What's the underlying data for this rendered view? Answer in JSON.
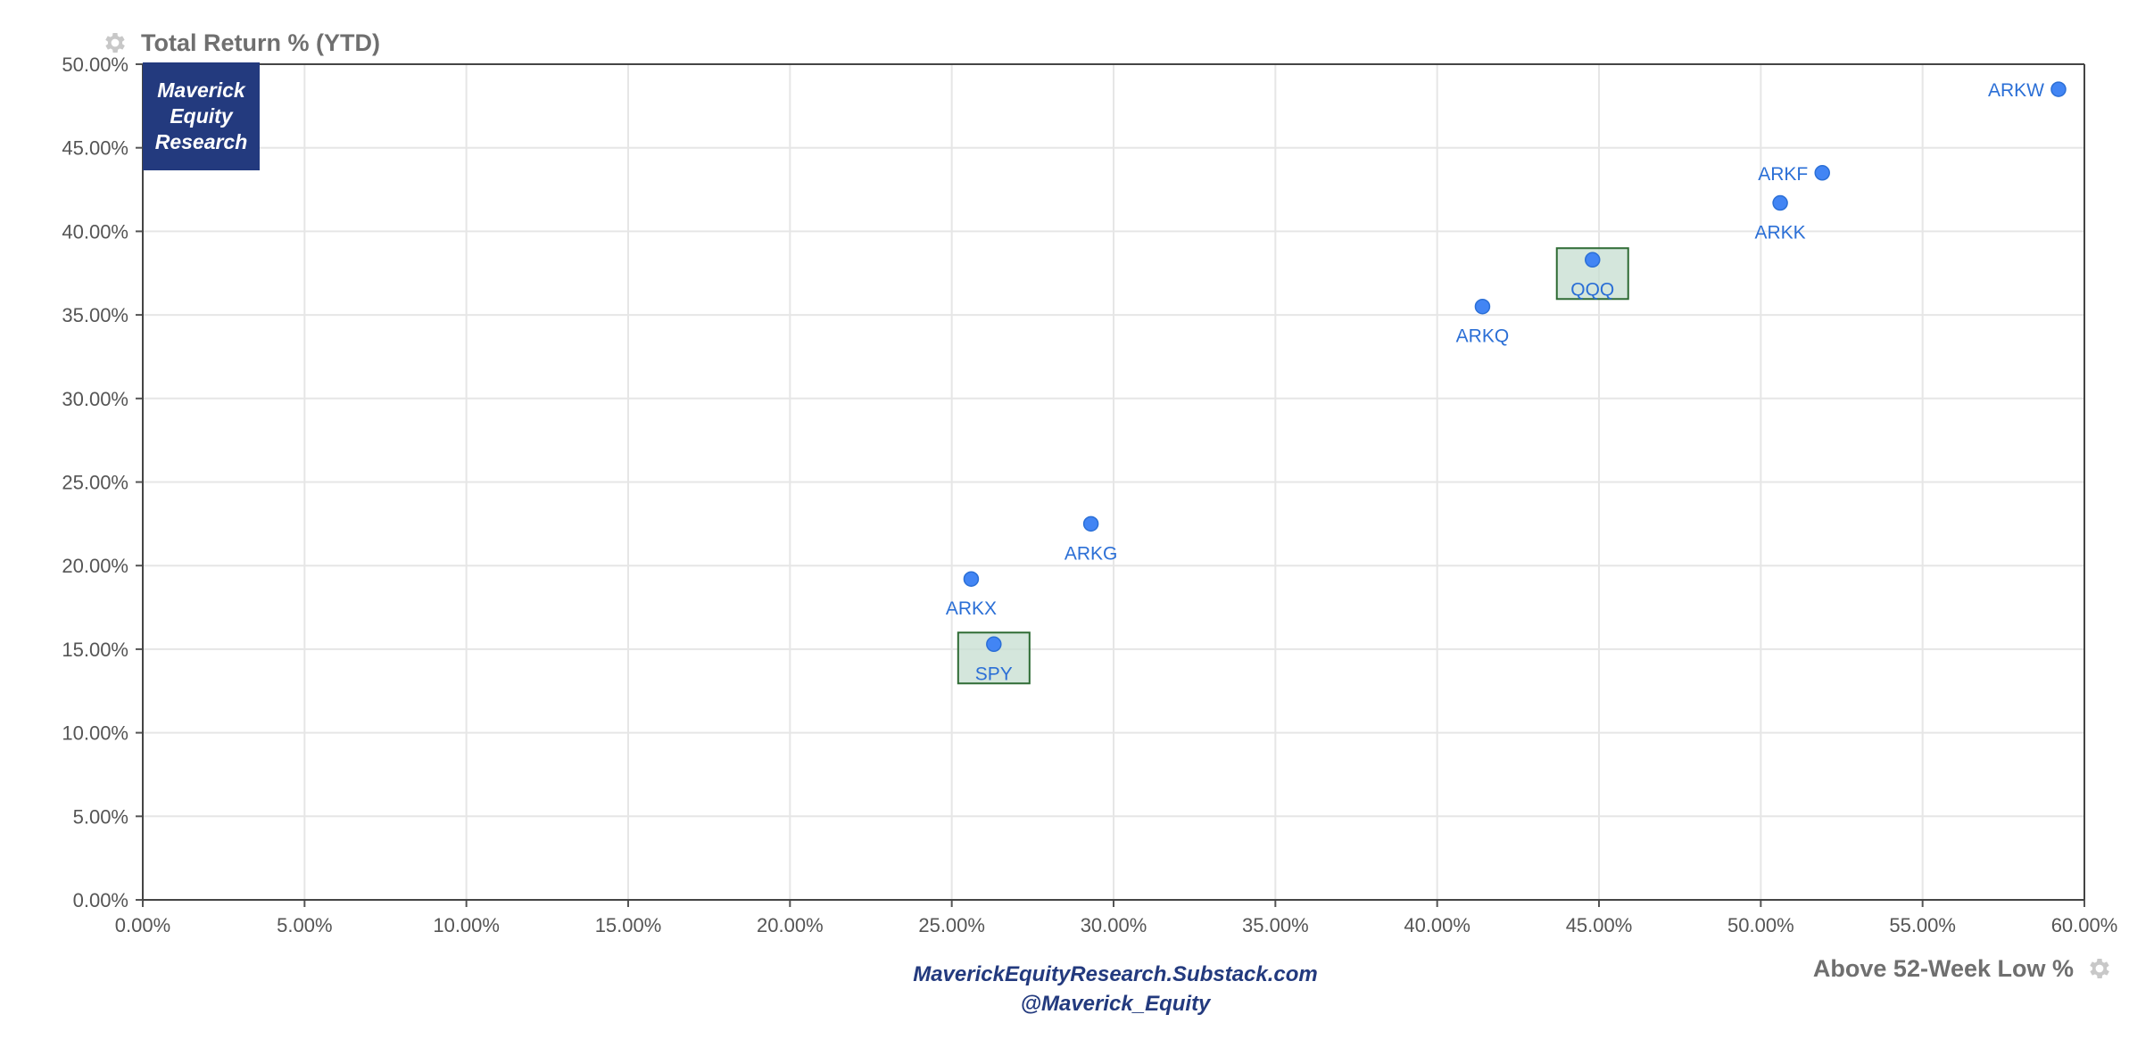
{
  "header": {
    "y_axis_title": "Total Return % (YTD)",
    "settings_icon": "gear-icon"
  },
  "footer": {
    "x_axis_title": "Above 52-Week Low %",
    "settings_icon": "gear-icon",
    "source_line_1": "MaverickEquityResearch.Substack.com",
    "source_line_2": "@Maverick_Equity"
  },
  "brand": {
    "line_1": "Maverick",
    "line_2": "Equity",
    "line_3": "Research"
  },
  "colors": {
    "point": "#4285f4",
    "point_label": "#2b6fd6",
    "highlight_fill": "#c6ddd0",
    "highlight_stroke": "#2e6b34",
    "brand_bg": "#233a7e",
    "grid": "#e6e6e6",
    "axis_text": "#555555"
  },
  "chart_data": {
    "type": "scatter",
    "xlabel": "Above 52-Week Low %",
    "ylabel": "Total Return % (YTD)",
    "xlim": [
      0,
      60
    ],
    "ylim": [
      0,
      50
    ],
    "x_ticks": [
      "0.00%",
      "5.00%",
      "10.00%",
      "15.00%",
      "20.00%",
      "25.00%",
      "30.00%",
      "35.00%",
      "40.00%",
      "45.00%",
      "50.00%",
      "55.00%",
      "60.00%"
    ],
    "y_ticks": [
      "0.00%",
      "5.00%",
      "10.00%",
      "15.00%",
      "20.00%",
      "25.00%",
      "30.00%",
      "35.00%",
      "40.00%",
      "45.00%",
      "50.00%"
    ],
    "grid": true,
    "points": [
      {
        "label": "ARKW",
        "x": 59.2,
        "y": 48.5,
        "label_pos": "left",
        "highlight": false
      },
      {
        "label": "ARKF",
        "x": 51.9,
        "y": 43.5,
        "label_pos": "left",
        "highlight": false
      },
      {
        "label": "ARKK",
        "x": 50.6,
        "y": 41.7,
        "label_pos": "below",
        "highlight": false
      },
      {
        "label": "QQQ",
        "x": 44.8,
        "y": 38.3,
        "label_pos": "below",
        "highlight": true
      },
      {
        "label": "ARKQ",
        "x": 41.4,
        "y": 35.5,
        "label_pos": "below",
        "highlight": false
      },
      {
        "label": "ARKG",
        "x": 29.3,
        "y": 22.5,
        "label_pos": "below",
        "highlight": false
      },
      {
        "label": "ARKX",
        "x": 25.6,
        "y": 19.2,
        "label_pos": "below",
        "highlight": false
      },
      {
        "label": "SPY",
        "x": 26.3,
        "y": 15.3,
        "label_pos": "below",
        "highlight": true
      }
    ]
  }
}
